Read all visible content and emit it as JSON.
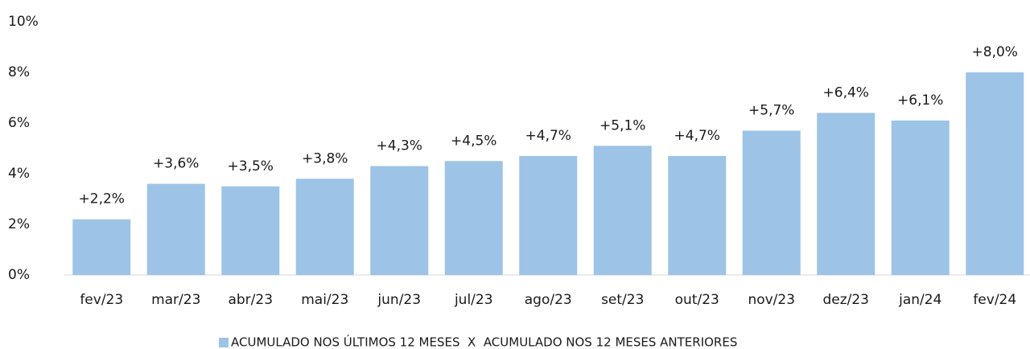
{
  "chart_data": {
    "type": "bar",
    "categories": [
      "fev/23",
      "mar/23",
      "abr/23",
      "mai/23",
      "jun/23",
      "jul/23",
      "ago/23",
      "set/23",
      "out/23",
      "nov/23",
      "dez/23",
      "jan/24",
      "fev/24"
    ],
    "series": [
      {
        "name": "ACUMULADO NOS ÚLTIMOS 12 MESES  X  ACUMULADO NOS 12 MESES ANTERIORES",
        "color": "#9dc3e6",
        "values": [
          2.2,
          3.6,
          3.5,
          3.8,
          4.3,
          4.5,
          4.7,
          5.1,
          4.7,
          5.7,
          6.4,
          6.1,
          8.0
        ],
        "value_labels": [
          "+2,2%",
          "+3,6%",
          "+3,5%",
          "+3,8%",
          "+4,3%",
          "+4,5%",
          "+4,7%",
          "+5,1%",
          "+4,7%",
          "+5,7%",
          "+6,4%",
          "+6,1%",
          "+8,0%"
        ]
      }
    ],
    "ylim": [
      0,
      10
    ],
    "yticks": [
      {
        "value": 0,
        "label": "0%"
      },
      {
        "value": 2,
        "label": "2%"
      },
      {
        "value": 4,
        "label": "4%"
      },
      {
        "value": 6,
        "label": "6%"
      },
      {
        "value": 8,
        "label": "8%"
      },
      {
        "value": 10,
        "label": "10%"
      }
    ],
    "grid": false,
    "legend": "bottom"
  }
}
